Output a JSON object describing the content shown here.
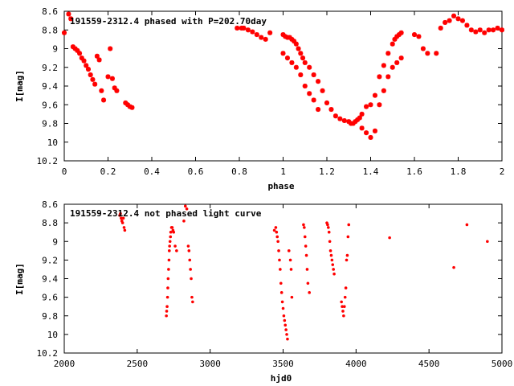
{
  "chart_data": [
    {
      "type": "scatter",
      "title": "191559-2312.4 phased with P=202.70day",
      "xlabel": "phase",
      "ylabel": "I[mag]",
      "xlim": [
        0,
        2
      ],
      "ylim": [
        10.2,
        8.6
      ],
      "y_inverted": true,
      "grid": false,
      "marker_color": "#ff0000",
      "marker": "star",
      "x_ticks": [
        "0",
        "0.2",
        "0.4",
        "0.6",
        "0.8",
        "1",
        "1.2",
        "1.4",
        "1.6",
        "1.8",
        "2"
      ],
      "y_ticks": [
        "8.6",
        "8.8",
        "9",
        "9.2",
        "9.4",
        "9.6",
        "9.8",
        "10",
        "10.2"
      ],
      "series": [
        {
          "x": [
            0.0,
            0.02,
            0.03,
            0.04,
            0.05,
            0.06,
            0.07,
            0.08,
            0.09,
            0.1,
            0.11,
            0.12,
            0.13,
            0.14,
            0.15,
            0.16,
            0.17,
            0.18,
            0.2,
            0.21,
            0.22,
            0.23,
            0.24,
            0.28,
            0.29,
            0.3,
            0.31,
            0.79,
            0.81,
            0.82,
            0.84,
            0.86,
            0.88,
            0.9,
            0.92,
            0.94,
            1.0,
            1.01,
            1.02,
            1.03,
            1.04,
            1.05,
            1.06,
            1.07,
            1.08,
            1.09,
            1.1,
            1.12,
            1.14,
            1.16,
            1.18,
            1.2,
            1.22,
            1.24,
            1.26,
            1.28,
            1.3,
            1.31,
            1.32,
            1.33,
            1.34,
            1.35,
            1.36,
            1.38,
            1.4,
            1.42,
            1.44,
            1.46,
            1.48,
            1.5,
            1.51,
            1.52,
            1.53,
            1.54,
            1.0,
            1.02,
            1.04,
            1.06,
            1.08,
            1.1,
            1.12,
            1.14,
            1.16,
            1.36,
            1.38,
            1.4,
            1.42,
            1.44,
            1.46,
            1.48,
            1.5,
            1.52,
            1.54,
            1.6,
            1.62,
            1.64,
            1.66,
            1.7,
            1.72,
            1.74,
            1.76,
            1.78,
            1.8,
            1.82,
            1.84,
            1.86,
            1.88,
            1.9,
            1.92,
            1.94,
            1.96,
            1.98,
            2.0
          ],
          "y": [
            8.83,
            8.63,
            8.68,
            8.98,
            9.0,
            9.02,
            9.05,
            9.1,
            9.13,
            9.18,
            9.22,
            9.28,
            9.33,
            9.38,
            9.08,
            9.12,
            9.45,
            9.55,
            9.3,
            9.0,
            9.32,
            9.42,
            9.45,
            9.58,
            9.6,
            9.62,
            9.63,
            8.78,
            8.78,
            8.78,
            8.8,
            8.82,
            8.85,
            8.88,
            8.9,
            8.83,
            8.85,
            8.87,
            8.88,
            8.88,
            8.9,
            8.92,
            8.95,
            9.0,
            9.05,
            9.1,
            9.15,
            9.2,
            9.28,
            9.35,
            9.45,
            9.58,
            9.65,
            9.72,
            9.75,
            9.77,
            9.78,
            9.8,
            9.8,
            9.78,
            9.76,
            9.74,
            9.7,
            9.62,
            9.6,
            9.5,
            9.3,
            9.18,
            9.05,
            8.95,
            8.9,
            8.87,
            8.85,
            8.83,
            9.05,
            9.1,
            9.15,
            9.2,
            9.28,
            9.4,
            9.48,
            9.55,
            9.65,
            9.85,
            9.9,
            9.95,
            9.88,
            9.6,
            9.45,
            9.3,
            9.2,
            9.15,
            9.1,
            8.85,
            8.87,
            9.0,
            9.05,
            9.05,
            8.78,
            8.72,
            8.7,
            8.65,
            8.68,
            8.7,
            8.75,
            8.8,
            8.82,
            8.8,
            8.83,
            8.8,
            8.8,
            8.78,
            8.8
          ]
        }
      ]
    },
    {
      "type": "scatter",
      "title": "191559-2312.4 not phased light curve",
      "xlabel": "hjd0",
      "ylabel": "I[mag]",
      "xlim": [
        2000,
        5000
      ],
      "ylim": [
        10.2,
        8.6
      ],
      "y_inverted": true,
      "grid": false,
      "marker_color": "#ff0000",
      "marker": "dot",
      "x_ticks": [
        "2000",
        "2500",
        "3000",
        "3500",
        "4000",
        "4500",
        "5000"
      ],
      "y_ticks": [
        "8.6",
        "8.8",
        "9",
        "9.2",
        "9.4",
        "9.6",
        "9.8",
        "10",
        "10.2"
      ],
      "series": [
        {
          "x": [
            2380,
            2385,
            2390,
            2395,
            2400,
            2405,
            2410,
            2415,
            2700,
            2702,
            2705,
            2708,
            2710,
            2712,
            2715,
            2718,
            2720,
            2722,
            2725,
            2728,
            2730,
            2735,
            2740,
            2745,
            2750,
            2760,
            2770,
            2820,
            2830,
            2840,
            2850,
            2855,
            2860,
            2865,
            2870,
            2875,
            2880,
            3440,
            3450,
            3455,
            3460,
            3465,
            3470,
            3475,
            3480,
            3485,
            3490,
            3495,
            3500,
            3505,
            3510,
            3515,
            3520,
            3525,
            3530,
            3540,
            3550,
            3555,
            3560,
            3640,
            3645,
            3650,
            3655,
            3660,
            3665,
            3670,
            3680,
            3800,
            3805,
            3810,
            3815,
            3820,
            3825,
            3830,
            3835,
            3840,
            3845,
            3850,
            3900,
            3905,
            3910,
            3915,
            3920,
            3925,
            3930,
            3935,
            3940,
            3945,
            3950,
            4230,
            4670,
            4760,
            4900
          ],
          "y": [
            8.72,
            8.7,
            8.75,
            8.78,
            8.8,
            8.75,
            8.85,
            8.88,
            9.8,
            9.75,
            9.7,
            9.6,
            9.5,
            9.4,
            9.3,
            9.2,
            9.1,
            9.05,
            9.0,
            8.95,
            8.9,
            8.85,
            8.85,
            8.88,
            8.9,
            9.05,
            9.1,
            8.78,
            8.62,
            8.65,
            9.05,
            9.1,
            9.2,
            9.3,
            9.4,
            9.6,
            9.65,
            8.88,
            8.85,
            8.9,
            8.95,
            9.0,
            9.1,
            9.2,
            9.3,
            9.45,
            9.55,
            9.65,
            9.72,
            9.8,
            9.85,
            9.9,
            9.95,
            10.0,
            10.05,
            9.1,
            9.2,
            9.3,
            9.6,
            8.82,
            8.85,
            8.95,
            9.05,
            9.15,
            9.3,
            9.45,
            9.55,
            8.8,
            8.82,
            8.85,
            8.9,
            9.0,
            9.1,
            9.15,
            9.2,
            9.25,
            9.3,
            9.35,
            9.65,
            9.7,
            9.75,
            9.8,
            9.7,
            9.6,
            9.5,
            9.2,
            9.15,
            8.95,
            8.82,
            8.96,
            9.28,
            8.82,
            9.0
          ]
        }
      ]
    }
  ]
}
